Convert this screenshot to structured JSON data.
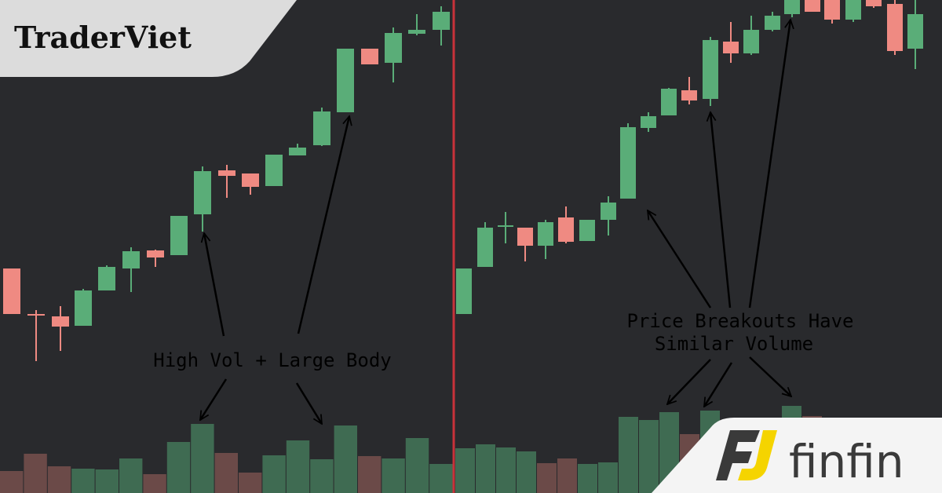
{
  "logo": "TraderViet",
  "annotations": {
    "left": "High Vol + Large Body",
    "right": [
      "Price Breakouts Have",
      "Similar Volume"
    ]
  },
  "brand": "finfin"
}
